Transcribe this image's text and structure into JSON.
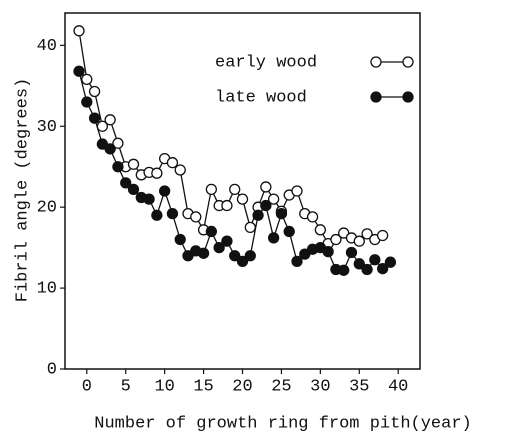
{
  "chart_data": {
    "type": "line",
    "xlabel": "Number of growth ring from pith(year)",
    "ylabel": "Fibril angle (degrees)",
    "xlim": [
      -2.8,
      42.8
    ],
    "ylim": [
      0,
      44
    ],
    "xticks": [
      0,
      5,
      10,
      15,
      20,
      25,
      30,
      35,
      40
    ],
    "yticks": [
      0,
      10,
      20,
      30,
      40
    ],
    "series": [
      {
        "name": "early wood",
        "color": "#111111",
        "marker": "open",
        "x": [
          -1,
          0,
          1,
          2,
          3,
          4,
          5,
          6,
          7,
          8,
          9,
          10,
          11,
          12,
          13,
          14,
          15,
          16,
          17,
          18,
          19,
          20,
          21,
          22,
          23,
          24,
          25,
          26,
          27,
          28,
          29,
          30,
          31,
          32,
          33,
          34,
          35,
          36,
          37,
          38
        ],
        "values": [
          41.8,
          35.8,
          34.3,
          30,
          30.8,
          27.9,
          25,
          25.3,
          24,
          24.3,
          24.2,
          26,
          25.5,
          24.6,
          19.2,
          18.8,
          17.2,
          22.2,
          20.2,
          20.2,
          22.2,
          21,
          17.5,
          20,
          22.5,
          21,
          19.5,
          21.5,
          22,
          19.2,
          18.8,
          17.2,
          15.5,
          16,
          16.8,
          16.2,
          15.8,
          16.7,
          16,
          16.5
        ]
      },
      {
        "name": "late wood",
        "color": "#111111",
        "marker": "filled",
        "x": [
          -1,
          0,
          1,
          2,
          3,
          4,
          5,
          6,
          7,
          8,
          9,
          10,
          11,
          12,
          13,
          14,
          15,
          16,
          17,
          18,
          19,
          20,
          21,
          22,
          23,
          24,
          25,
          26,
          27,
          28,
          29,
          30,
          31,
          32,
          33,
          34,
          35,
          36,
          37,
          38,
          39
        ],
        "values": [
          36.8,
          33,
          31,
          27.8,
          27.2,
          25,
          23,
          22.2,
          21.2,
          21,
          19,
          22,
          19.2,
          16,
          14,
          14.6,
          14.3,
          17,
          15,
          15.8,
          14,
          13.3,
          14,
          19,
          20.2,
          16.2,
          19.2,
          17,
          13.3,
          14.2,
          14.8,
          15,
          14.5,
          12.3,
          12.2,
          14.4,
          13,
          12.3,
          13.5,
          12.4,
          13.2
        ]
      }
    ]
  }
}
